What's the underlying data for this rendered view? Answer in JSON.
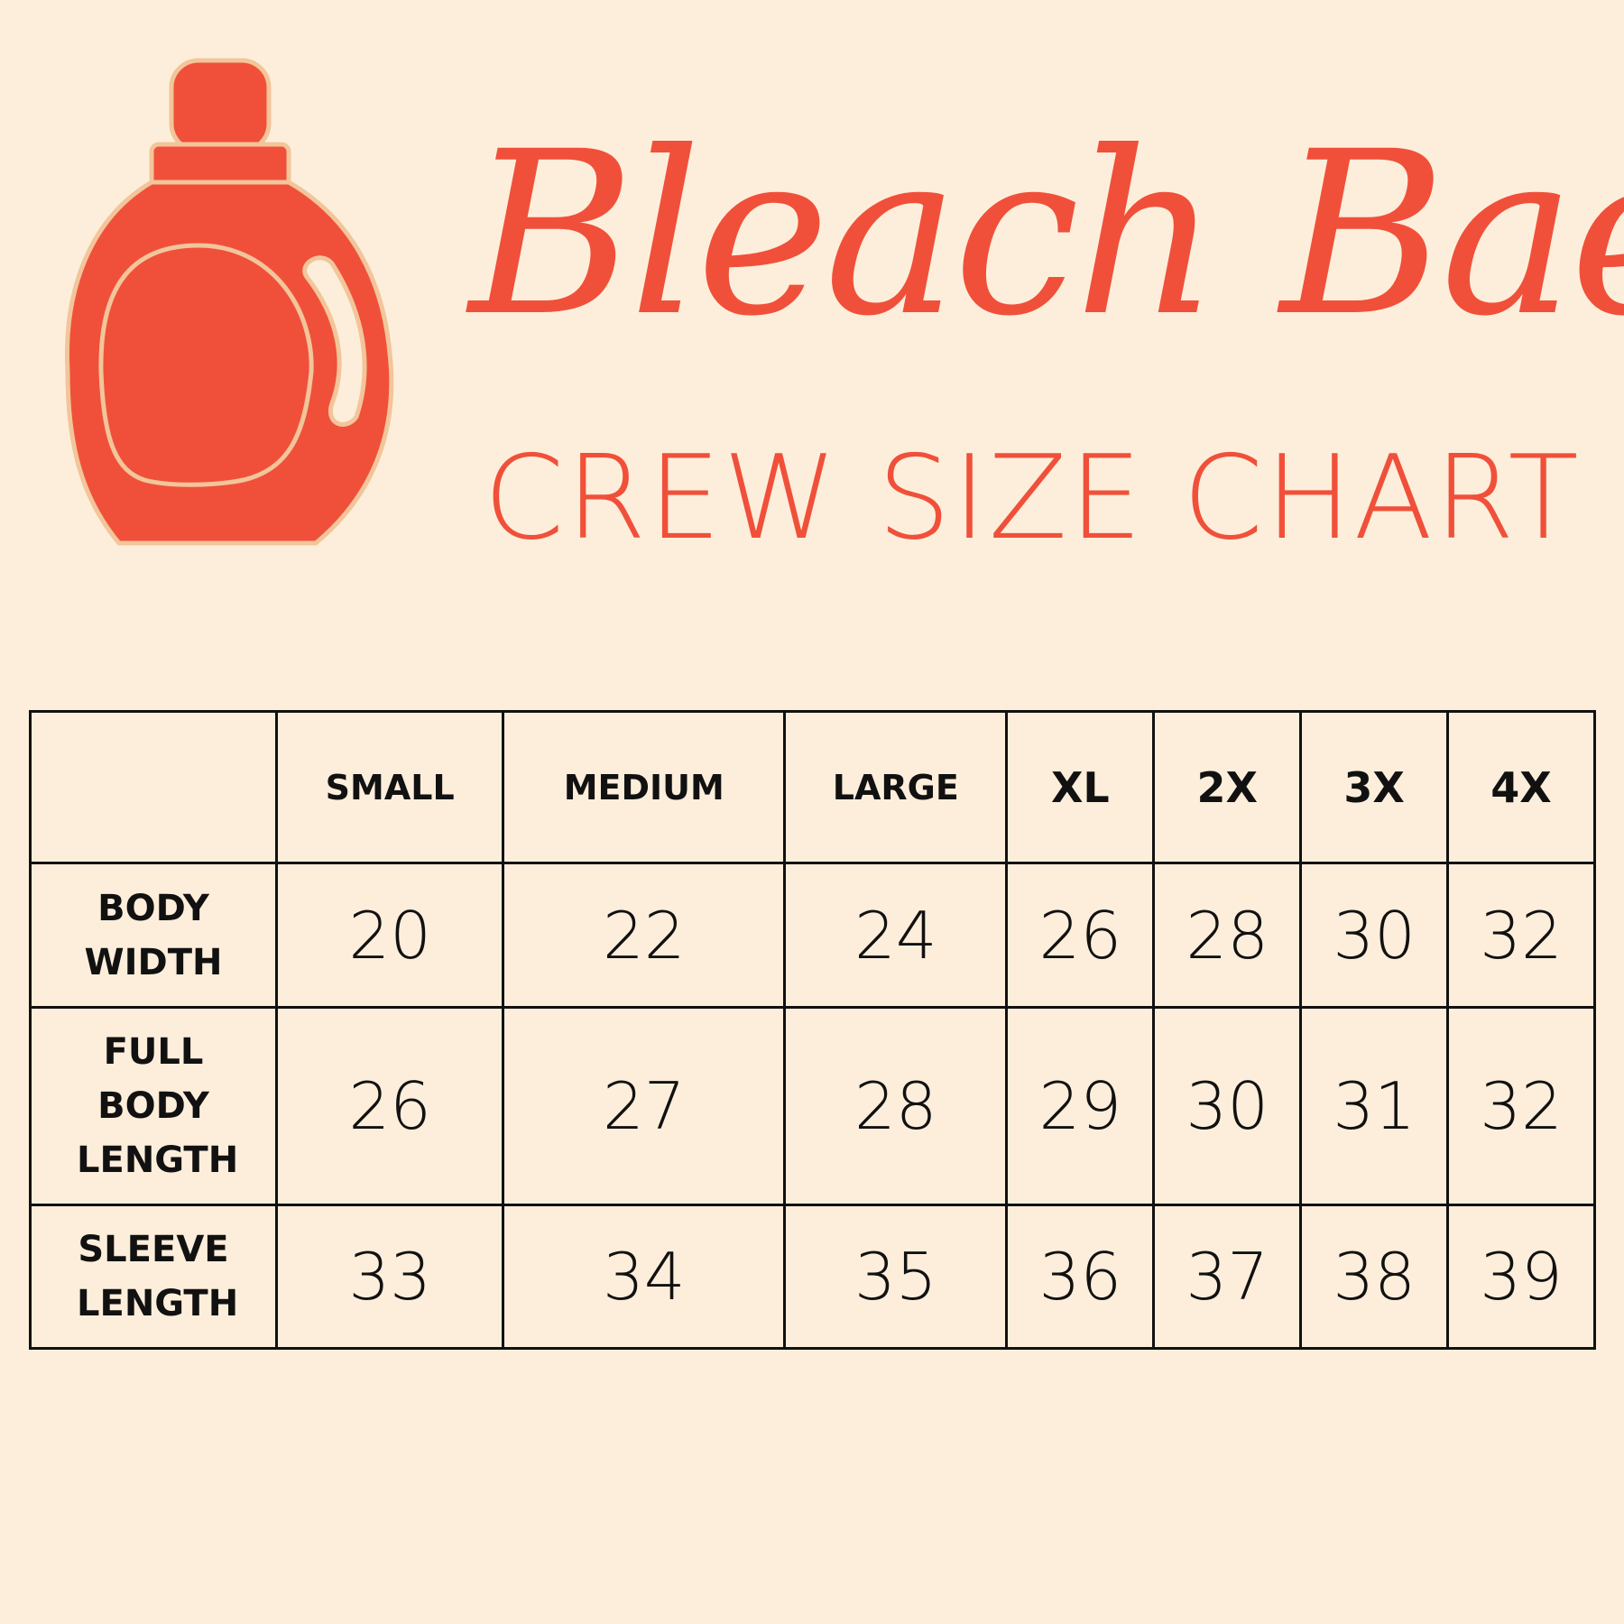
{
  "brand": "Bleach Bae",
  "subtitle": "CREW SIZE CHART",
  "colors": {
    "accent": "#f0503a",
    "background": "#fdeedb",
    "outline": "#f2c59a"
  },
  "icon": "bleach-bottle-icon",
  "table": {
    "columns": [
      "SMALL",
      "MEDIUM",
      "LARGE",
      "XL",
      "2X",
      "3X",
      "4X"
    ],
    "rows": [
      {
        "label": "BODY WIDTH",
        "values": [
          "20",
          "22",
          "24",
          "26",
          "28",
          "30",
          "32"
        ]
      },
      {
        "label": "FULL BODY LENGTH",
        "values": [
          "26",
          "27",
          "28",
          "29",
          "30",
          "31",
          "32"
        ]
      },
      {
        "label": "SLEEVE LENGTH",
        "values": [
          "33",
          "34",
          "35",
          "36",
          "37",
          "38",
          "39"
        ]
      }
    ]
  }
}
